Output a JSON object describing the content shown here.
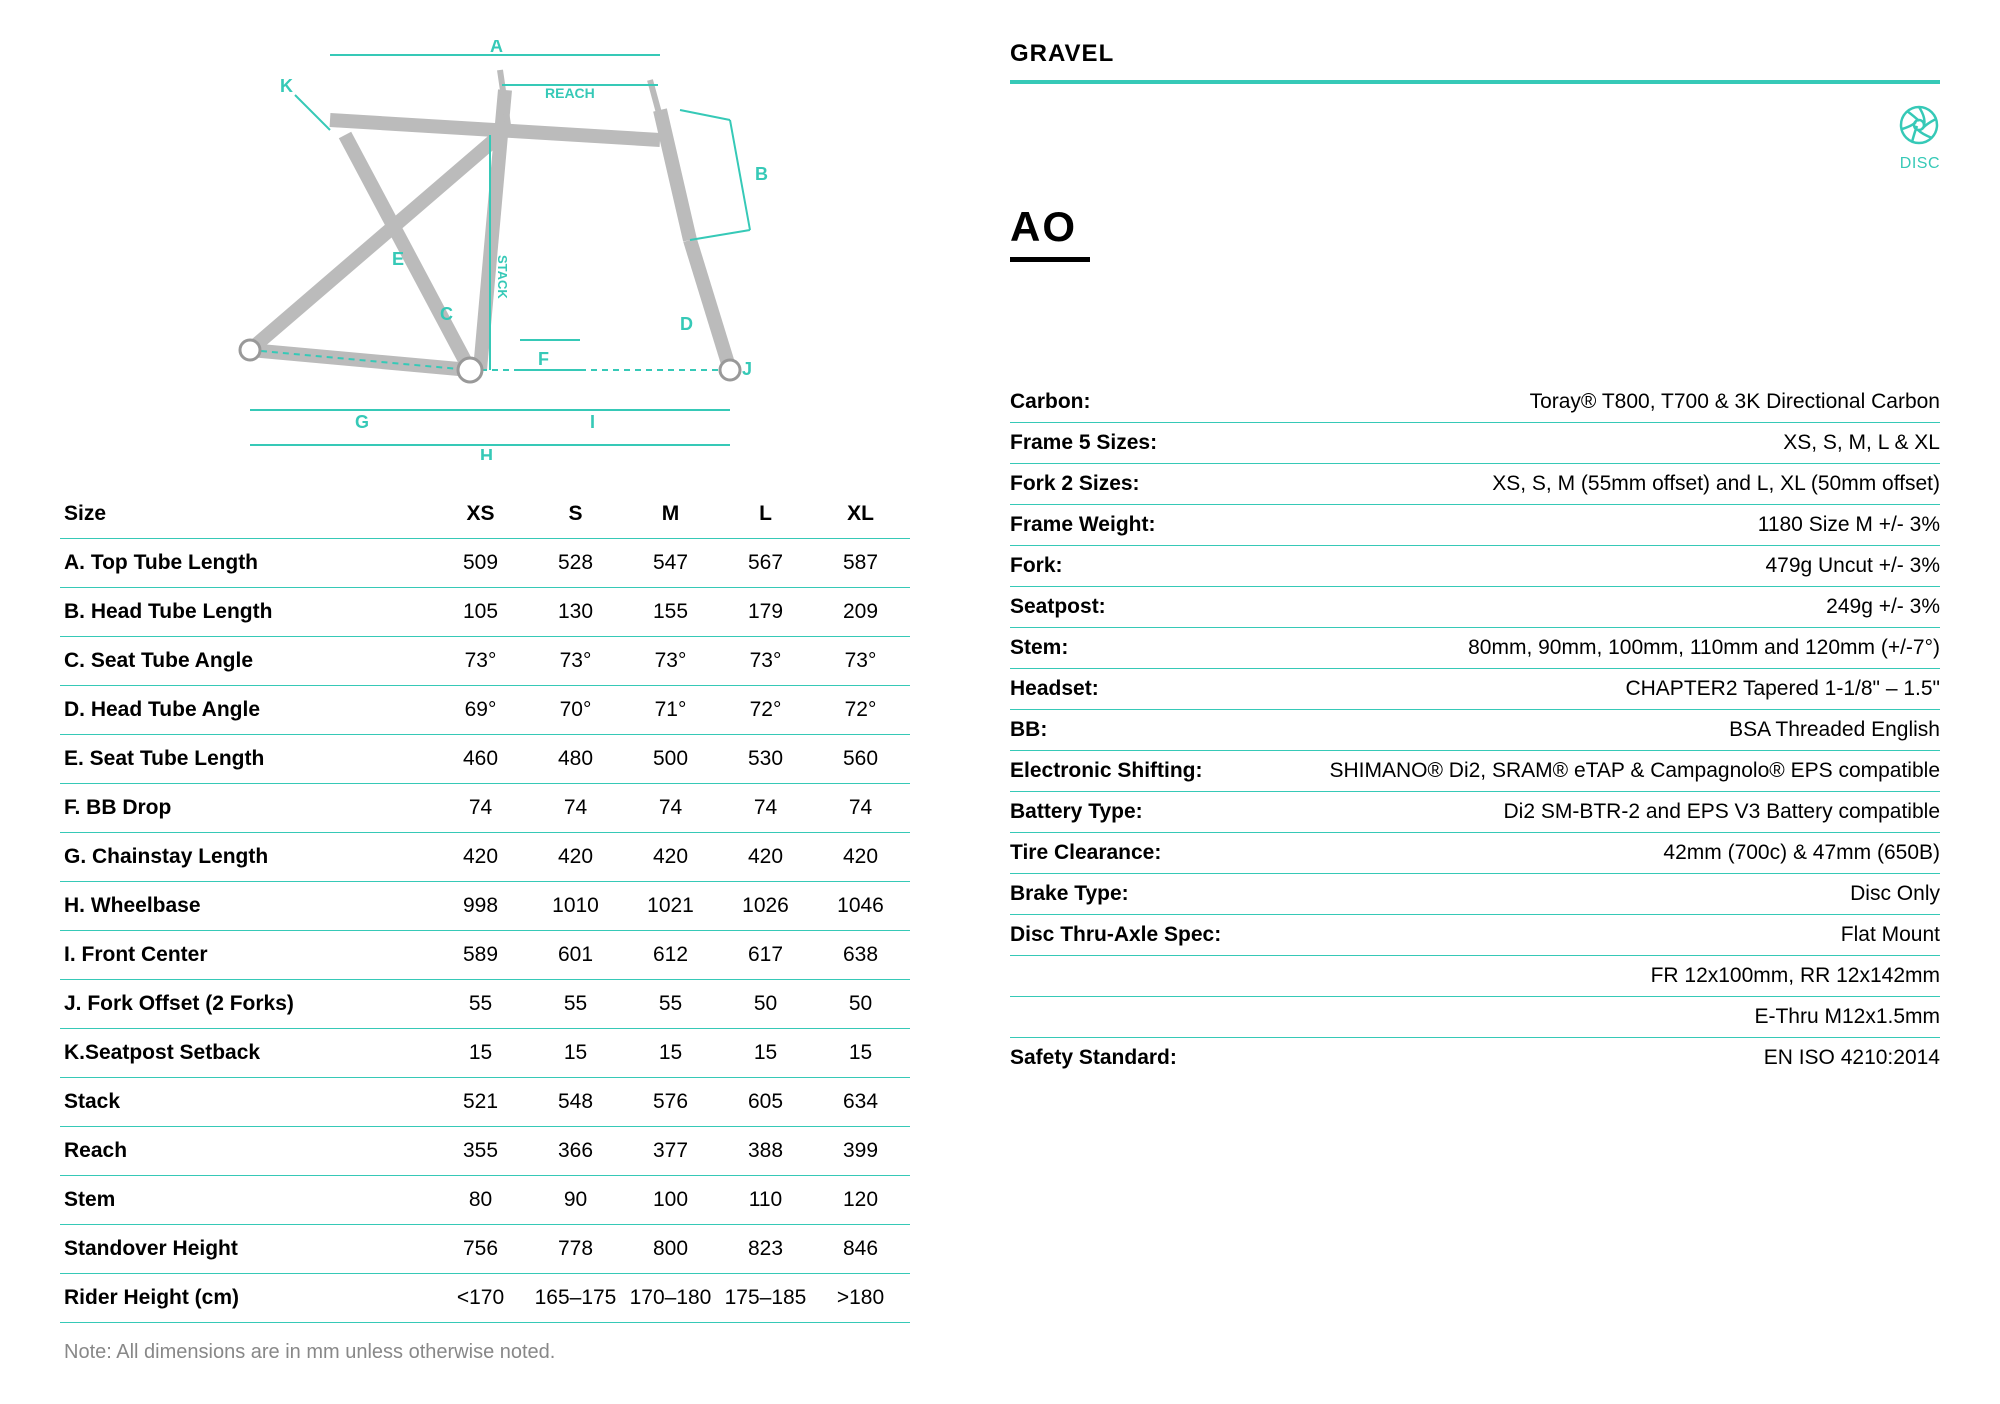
{
  "colors": {
    "accent": "#36c9b7",
    "text": "#000000",
    "note": "#888888",
    "bg": "#ffffff",
    "diagram_frame": "#cccccc",
    "diagram_lines": "#36c9b7"
  },
  "diagram": {
    "labels": [
      "A",
      "B",
      "C",
      "D",
      "E",
      "F",
      "G",
      "H",
      "I",
      "J",
      "K",
      "REACH",
      "STACK"
    ]
  },
  "geometry": {
    "size_header": "Size",
    "sizes": [
      "XS",
      "S",
      "M",
      "L",
      "XL"
    ],
    "rows": [
      {
        "label": "A. Top Tube Length",
        "values": [
          "509",
          "528",
          "547",
          "567",
          "587"
        ]
      },
      {
        "label": "B. Head Tube Length",
        "values": [
          "105",
          "130",
          "155",
          "179",
          "209"
        ]
      },
      {
        "label": "C. Seat Tube Angle",
        "values": [
          "73°",
          "73°",
          "73°",
          "73°",
          "73°"
        ]
      },
      {
        "label": "D. Head Tube Angle",
        "values": [
          "69°",
          "70°",
          "71°",
          "72°",
          "72°"
        ]
      },
      {
        "label": "E. Seat Tube Length",
        "values": [
          "460",
          "480",
          "500",
          "530",
          "560"
        ]
      },
      {
        "label": "F. BB Drop",
        "values": [
          "74",
          "74",
          "74",
          "74",
          "74"
        ]
      },
      {
        "label": "G. Chainstay Length",
        "values": [
          "420",
          "420",
          "420",
          "420",
          "420"
        ]
      },
      {
        "label": "H. Wheelbase",
        "values": [
          "998",
          "1010",
          "1021",
          "1026",
          "1046"
        ]
      },
      {
        "label": "I. Front Center",
        "values": [
          "589",
          "601",
          "612",
          "617",
          "638"
        ]
      },
      {
        "label": "J. Fork Offset (2 Forks)",
        "values": [
          "55",
          "55",
          "55",
          "50",
          "50"
        ]
      },
      {
        "label": "K.Seatpost Setback",
        "values": [
          "15",
          "15",
          "15",
          "15",
          "15"
        ]
      },
      {
        "label": "Stack",
        "values": [
          "521",
          "548",
          "576",
          "605",
          "634"
        ]
      },
      {
        "label": "Reach",
        "values": [
          "355",
          "366",
          "377",
          "388",
          "399"
        ]
      },
      {
        "label": "Stem",
        "values": [
          "80",
          "90",
          "100",
          "110",
          "120"
        ]
      },
      {
        "label": "Standover Height",
        "values": [
          "756",
          "778",
          "800",
          "823",
          "846"
        ]
      },
      {
        "label": "Rider Height (cm)",
        "values": [
          "<170",
          "165–175",
          "170–180",
          "175–185",
          ">180"
        ]
      }
    ],
    "note": "Note: All dimensions are in mm unless otherwise noted."
  },
  "product": {
    "category": "GRAVEL",
    "disc_label": "DISC",
    "model": "AO"
  },
  "specs": [
    {
      "label": "Carbon:",
      "value": "Toray® T800, T700 & 3K Directional Carbon"
    },
    {
      "label": "Frame 5 Sizes:",
      "value": "XS, S, M, L & XL"
    },
    {
      "label": "Fork 2 Sizes:",
      "value": "XS, S, M (55mm offset) and L, XL (50mm offset)"
    },
    {
      "label": "Frame Weight:",
      "value": "1180 Size M +/- 3%"
    },
    {
      "label": "Fork:",
      "value": "479g Uncut +/- 3%"
    },
    {
      "label": "Seatpost:",
      "value": "249g +/- 3%"
    },
    {
      "label": "Stem:",
      "value": "80mm, 90mm, 100mm, 110mm and 120mm (+/-7°)"
    },
    {
      "label": "Headset:",
      "value": "CHAPTER2 Tapered 1-1/8\" – 1.5\""
    },
    {
      "label": "BB:",
      "value": "BSA Threaded English"
    },
    {
      "label": "Electronic Shifting:",
      "value": "SHIMANO® Di2, SRAM® eTAP & Campagnolo® EPS compatible",
      "multiline": true
    },
    {
      "label": "Battery Type:",
      "value": "Di2 SM-BTR-2 and EPS V3 Battery compatible"
    },
    {
      "label": "Tire Clearance:",
      "value": "42mm (700c) & 47mm (650B)"
    },
    {
      "label": "Brake Type:",
      "value": "Disc Only"
    },
    {
      "label": "Disc Thru-Axle Spec:",
      "value": "Flat Mount",
      "continuations": [
        "FR 12x100mm, RR 12x142mm",
        "E-Thru M12x1.5mm"
      ]
    },
    {
      "label": "Safety Standard:",
      "value": "EN ISO 4210:2014",
      "no_border": true
    }
  ]
}
